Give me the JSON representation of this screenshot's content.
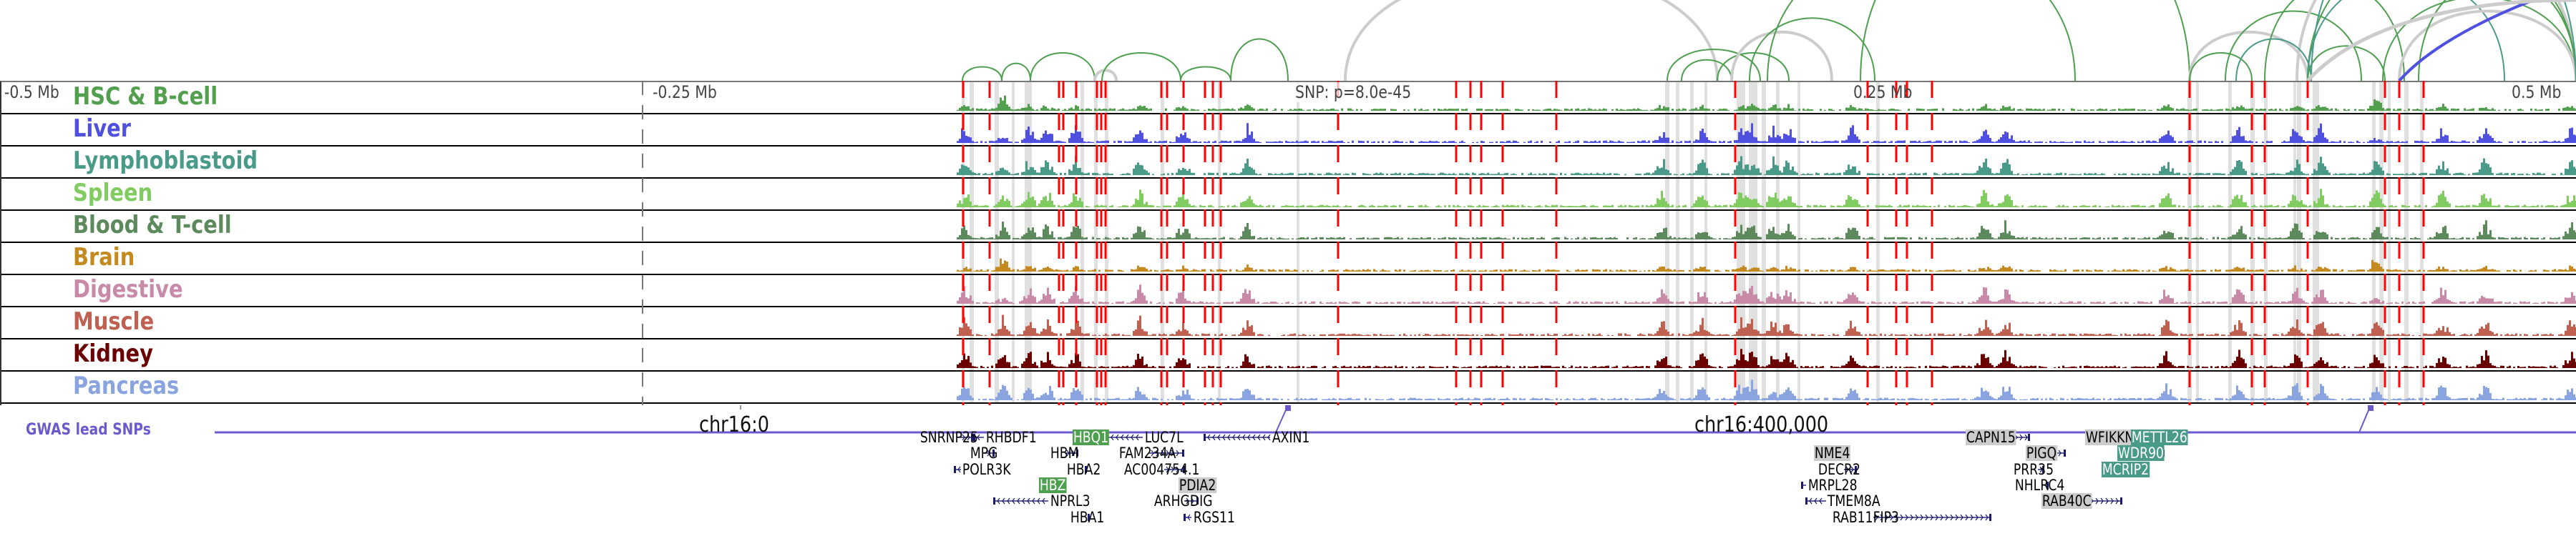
{
  "tracks": [
    {
      "label": "HSC & B-cell",
      "color": "#52a04e"
    },
    {
      "label": "Liver",
      "color": "#5050e0"
    },
    {
      "label": "Lymphoblastoid",
      "color": "#4a9a8a"
    },
    {
      "label": "Spleen",
      "color": "#80cc60"
    },
    {
      "label": "Blood & T-cell",
      "color": "#5c8a5c"
    },
    {
      "label": "Brain",
      "color": "#c48a20"
    },
    {
      "label": "Digestive",
      "color": "#c88aa8"
    },
    {
      "label": "Muscle",
      "color": "#c06050"
    },
    {
      "label": "Kidney",
      "color": "#6a0000"
    },
    {
      "label": "Pancreas",
      "color": "#8aa4e0"
    }
  ],
  "ruler": {
    "left": "-0.5 Mb",
    "left_mid": "-0.25 Mb",
    "snp": "SNP: p=8.0e-45",
    "right_mid": "0.25 Mb",
    "right": "0.5 Mb"
  },
  "coords": {
    "start": "chr16:0",
    "mid": "chr16:400,000"
  },
  "gwas": {
    "label": "GWAS lead SNPs",
    "color": "#6a5acd"
  },
  "colors": {
    "snp_line": "#ff0000",
    "highlight": "#e0e0e0",
    "gene_strand": "#1a1a6e"
  },
  "genes": [
    {
      "name": "SNRNP25",
      "highlight": "none"
    },
    {
      "name": "RHBDF1",
      "highlight": "none"
    },
    {
      "name": "MPG",
      "highlight": "none"
    },
    {
      "name": "POLR3K",
      "highlight": "none"
    },
    {
      "name": "HBQ1",
      "highlight": "green"
    },
    {
      "name": "HBM",
      "highlight": "none"
    },
    {
      "name": "HBA2",
      "highlight": "none"
    },
    {
      "name": "HBZ",
      "highlight": "green"
    },
    {
      "name": "NPRL3",
      "highlight": "none"
    },
    {
      "name": "HBA1",
      "highlight": "none"
    },
    {
      "name": "LUC7L",
      "highlight": "none"
    },
    {
      "name": "FAM234A",
      "highlight": "none"
    },
    {
      "name": "AC004754.1",
      "highlight": "none"
    },
    {
      "name": "PDIA2",
      "highlight": "grey"
    },
    {
      "name": "ARHGDIG",
      "highlight": "none"
    },
    {
      "name": "RGS11",
      "highlight": "none"
    },
    {
      "name": "AXIN1",
      "highlight": "none"
    },
    {
      "name": "NME4",
      "highlight": "grey"
    },
    {
      "name": "DECR2",
      "highlight": "none"
    },
    {
      "name": "MRPL28",
      "highlight": "none"
    },
    {
      "name": "TMEM8A",
      "highlight": "none"
    },
    {
      "name": "RAB11FIP3",
      "highlight": "none"
    },
    {
      "name": "CAPN15",
      "highlight": "grey"
    },
    {
      "name": "PIGQ",
      "highlight": "grey"
    },
    {
      "name": "PRR35",
      "highlight": "none"
    },
    {
      "name": "NHLRC4",
      "highlight": "none"
    },
    {
      "name": "RAB40C",
      "highlight": "grey"
    },
    {
      "name": "WFIKKN1",
      "highlight": "grey"
    },
    {
      "name": "METTL26",
      "highlight": "teal"
    },
    {
      "name": "WDR90",
      "highlight": "teal"
    },
    {
      "name": "MCRIP2",
      "highlight": "teal"
    }
  ]
}
